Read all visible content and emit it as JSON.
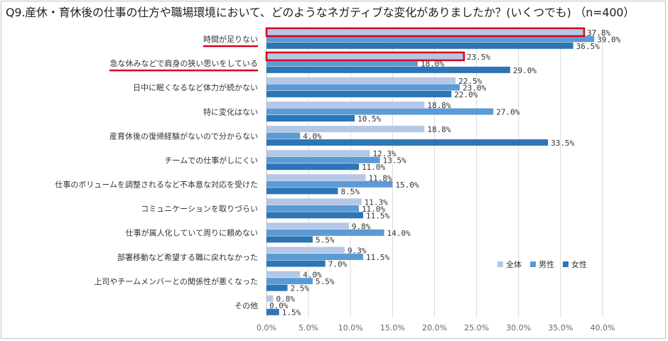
{
  "title": "Q9.産休・育休後の仕事の仕方や職場環境において、どのようなネガティブな変化がありましたか？(いくつでも) （n=400）",
  "chart_data": {
    "type": "bar",
    "orientation": "horizontal",
    "categories": [
      "時間が足りない",
      "急な休みなどで肩身の狭い思いをしている",
      "日中に眠くなるなど体力が続かない",
      "特に変化はない",
      "産育休後の復帰経験がないので分からない",
      "チームでの仕事がしにくい",
      "仕事のボリュームを調整されるなど不本意な対応を受けた",
      "コミュニケーションを取りづらい",
      "仕事が属人化していて周りに頼めない",
      "部署移動など希望する職に戻れなかった",
      "上司やチームメンバーとの関係性が悪くなった",
      "その他"
    ],
    "series": [
      {
        "name": "全体",
        "color": "#b4c7e7",
        "values": [
          37.8,
          23.5,
          22.5,
          18.8,
          18.8,
          12.3,
          11.8,
          11.3,
          9.8,
          9.3,
          4.0,
          0.8
        ]
      },
      {
        "name": "男性",
        "color": "#5b9bd5",
        "values": [
          39.0,
          18.0,
          23.0,
          27.0,
          4.0,
          13.5,
          15.0,
          11.0,
          14.0,
          11.5,
          5.5,
          0.0
        ]
      },
      {
        "name": "女性",
        "color": "#2e75b6",
        "values": [
          36.5,
          29.0,
          22.0,
          10.5,
          33.5,
          11.0,
          8.5,
          11.5,
          5.5,
          7.0,
          2.5,
          1.5
        ]
      }
    ],
    "value_labels": [
      [
        "37.8%",
        "39.0%",
        "36.5%"
      ],
      [
        "23.5%",
        "18.0%",
        "29.0%"
      ],
      [
        "22.5%",
        "23.0%",
        "22.0%"
      ],
      [
        "18.8%",
        "27.0%",
        "10.5%"
      ],
      [
        "18.8%",
        "4.0%",
        "33.5%"
      ],
      [
        "12.3%",
        "13.5%",
        "11.0%"
      ],
      [
        "11.8%",
        "15.0%",
        "8.5%"
      ],
      [
        "11.3%",
        "11.0%",
        "11.5%"
      ],
      [
        "9.8%",
        "14.0%",
        "5.5%"
      ],
      [
        "9.3%",
        "11.5%",
        "7.0%"
      ],
      [
        "4.0%",
        "5.5%",
        "2.5%"
      ],
      [
        "0.8%",
        "0.0%",
        "1.5%"
      ]
    ],
    "xlim": [
      0,
      40
    ],
    "xticks": [
      "0.0%",
      "5.0%",
      "10.0%",
      "15.0%",
      "20.0%",
      "25.0%",
      "30.0%",
      "35.0%",
      "40.0%"
    ],
    "grid": "vertical",
    "legend_position": "lower-right",
    "highlighted_categories": [
      "時間が足りない",
      "急な休みなどで肩身の狭い思いをしている"
    ],
    "highlight_color": "#d9001b"
  }
}
